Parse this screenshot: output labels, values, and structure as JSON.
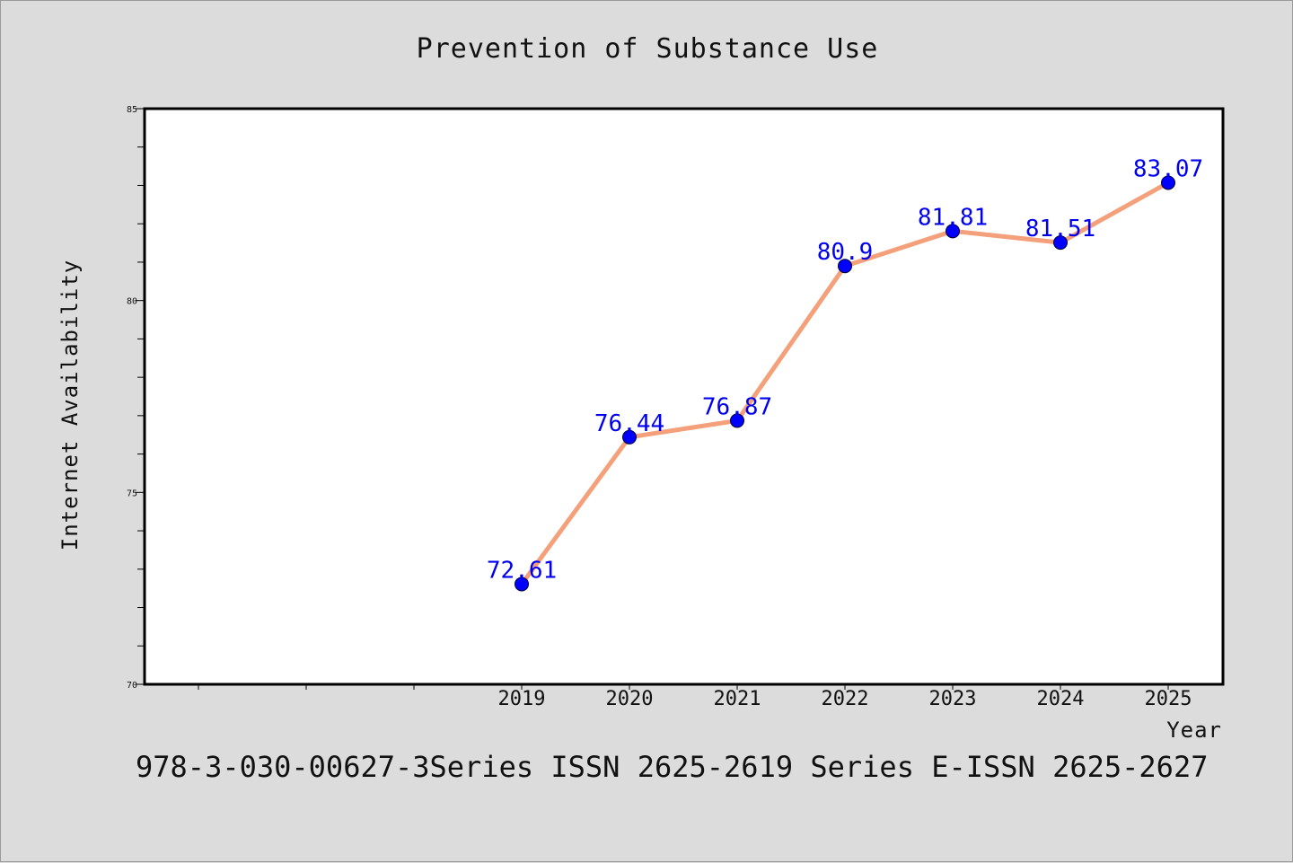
{
  "chart_data": {
    "type": "line",
    "title": "Prevention of Substance Use",
    "xlabel": "Year",
    "ylabel": "Internet Availability",
    "x": [
      2019,
      2020,
      2021,
      2022,
      2023,
      2024,
      2025
    ],
    "values": [
      72.61,
      76.44,
      76.87,
      80.9,
      81.81,
      81.51,
      83.07
    ],
    "data_labels": [
      "72.61",
      "76.44",
      "76.87",
      "80.9",
      "81.81",
      "81.51",
      "83.07"
    ],
    "ylim": [
      70,
      85
    ],
    "yticks": [
      "70",
      "75",
      "80",
      "85"
    ],
    "xticks": [
      "2019",
      "2020",
      "2021",
      "2022",
      "2023",
      "2024",
      "2025"
    ],
    "grid": false,
    "line_color": "#f4a07a",
    "marker_color": "#0000ff",
    "label_color": "#0000ee",
    "background": "#dcdcdc",
    "plot_background": "#ffffff"
  },
  "caption": "978-3-030-00627-3Series ISSN 2625-2619 Series E-ISSN 2625-2627"
}
